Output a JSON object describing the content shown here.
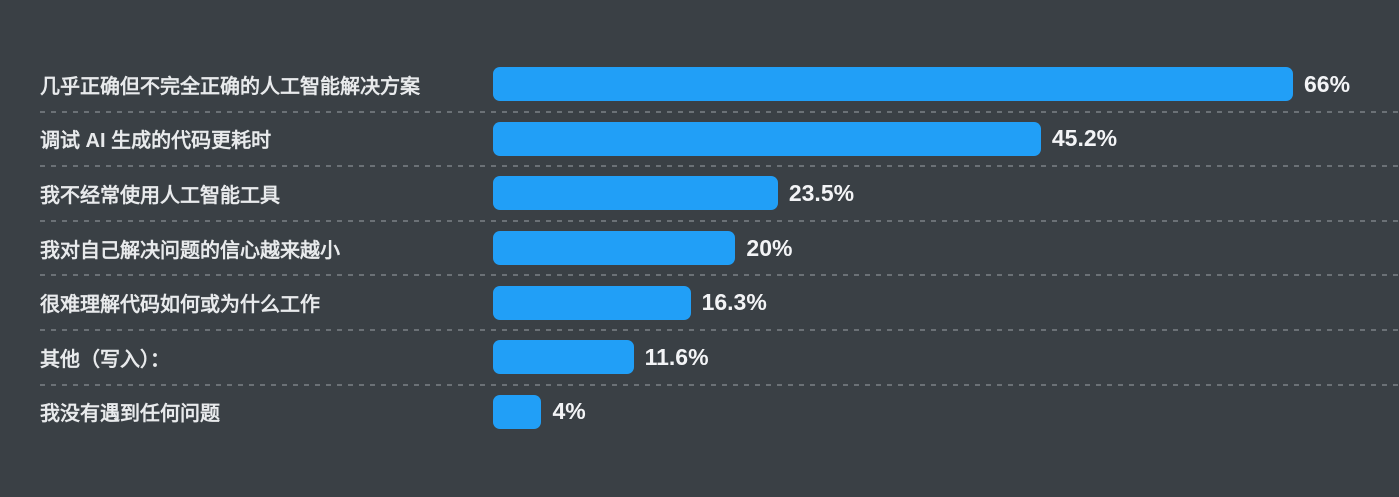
{
  "chart_data": {
    "type": "bar",
    "orientation": "horizontal",
    "title": "",
    "xlabel": "",
    "ylabel": "",
    "categories": [
      "几乎正确但不完全正确的人工智能解决方案",
      "调试 AI 生成的代码更耗时",
      "我不经常使用人工智能工具",
      "我对自己解决问题的信心越来越小",
      "很难理解代码如何或为什么工作",
      "其他（写入）：",
      "我没有遇到任何问题"
    ],
    "values": [
      66,
      45.2,
      23.5,
      20,
      16.3,
      11.6,
      4
    ],
    "value_labels": [
      "66%",
      "45.2%",
      "23.5%",
      "20%",
      "16.3%",
      "11.6%",
      "4%"
    ],
    "xlim": [
      0,
      66
    ],
    "grid": false,
    "legend_position": "none",
    "colors": {
      "bar": "#219ff7",
      "background": "#3a4045",
      "category_label_text": "#e8eaec",
      "value_label_text": "#f3f4f6",
      "separator": "#6b7176"
    }
  }
}
